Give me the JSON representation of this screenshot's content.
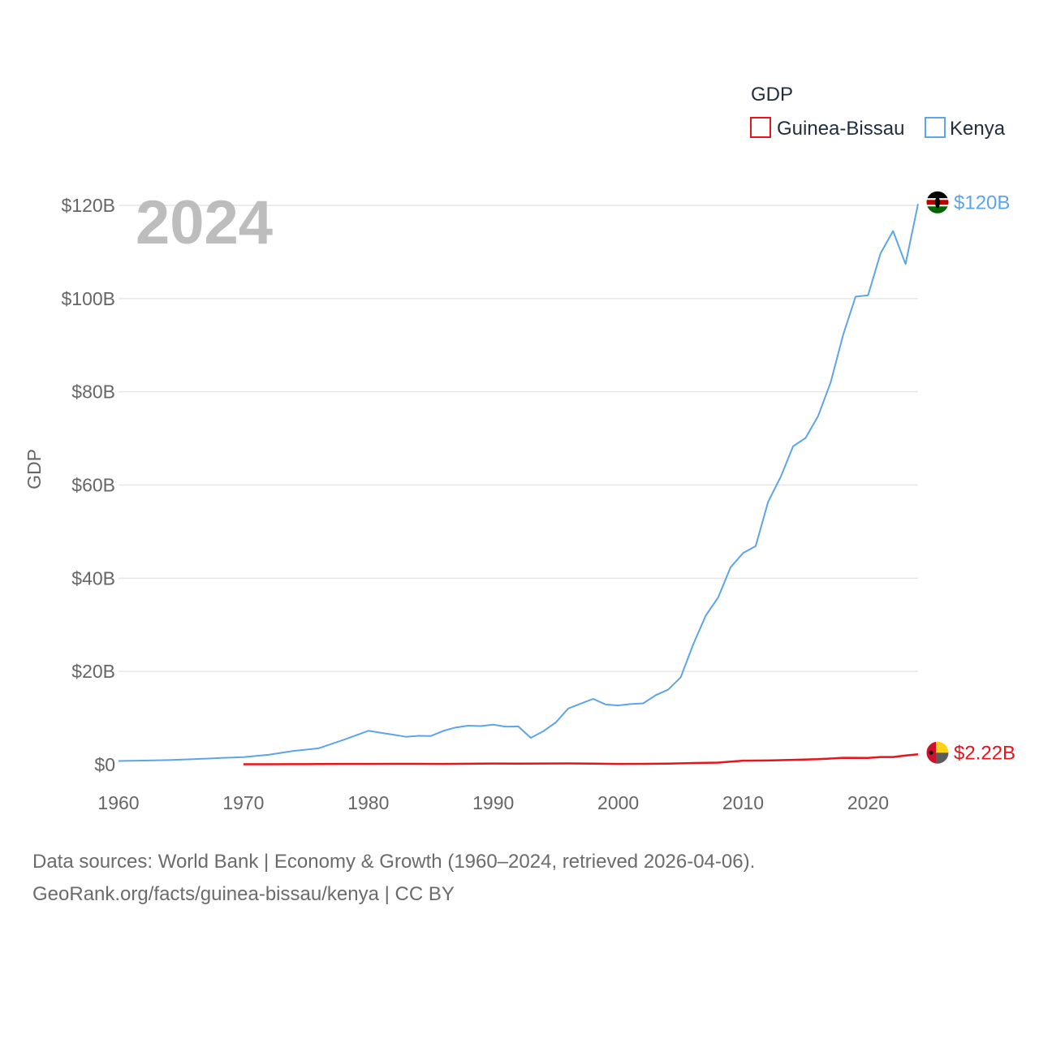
{
  "chart_data": {
    "type": "line",
    "year_label": "2024",
    "ylabel": "GDP",
    "legend_title": "GDP",
    "xlim": [
      1960,
      2024
    ],
    "ylim": [
      0,
      120
    ],
    "y_ticks": [
      {
        "value": 0,
        "label": "$0"
      },
      {
        "value": 20,
        "label": "$20B"
      },
      {
        "value": 40,
        "label": "$40B"
      },
      {
        "value": 60,
        "label": "$60B"
      },
      {
        "value": 80,
        "label": "$80B"
      },
      {
        "value": 100,
        "label": "$100B"
      },
      {
        "value": 120,
        "label": "$120B"
      }
    ],
    "x_ticks": [
      {
        "value": 1960,
        "label": "1960"
      },
      {
        "value": 1970,
        "label": "1970"
      },
      {
        "value": 1980,
        "label": "1980"
      },
      {
        "value": 1990,
        "label": "1990"
      },
      {
        "value": 2000,
        "label": "2000"
      },
      {
        "value": 2010,
        "label": "2010"
      },
      {
        "value": 2020,
        "label": "2020"
      }
    ],
    "series": [
      {
        "name": "Guinea-Bissau",
        "color": "#e8141c",
        "end_label": "$2.22B",
        "flag_colors": [
          "#ce1126",
          "#fcd116",
          "#5b5b5b",
          "#000000"
        ],
        "points": [
          [
            1970,
            0.08
          ],
          [
            1972,
            0.09
          ],
          [
            1974,
            0.11
          ],
          [
            1976,
            0.13
          ],
          [
            1978,
            0.15
          ],
          [
            1980,
            0.16
          ],
          [
            1982,
            0.18
          ],
          [
            1984,
            0.17
          ],
          [
            1986,
            0.16
          ],
          [
            1988,
            0.19
          ],
          [
            1990,
            0.24
          ],
          [
            1992,
            0.23
          ],
          [
            1994,
            0.24
          ],
          [
            1996,
            0.26
          ],
          [
            1998,
            0.21
          ],
          [
            2000,
            0.15
          ],
          [
            2002,
            0.17
          ],
          [
            2004,
            0.23
          ],
          [
            2006,
            0.35
          ],
          [
            2008,
            0.44
          ],
          [
            2010,
            0.85
          ],
          [
            2012,
            0.88
          ],
          [
            2014,
            1.02
          ],
          [
            2016,
            1.17
          ],
          [
            2018,
            1.46
          ],
          [
            2020,
            1.43
          ],
          [
            2021,
            1.64
          ],
          [
            2022,
            1.63
          ],
          [
            2023,
            1.97
          ],
          [
            2024,
            2.22
          ]
        ]
      },
      {
        "name": "Kenya",
        "color": "#5da5e8",
        "end_label": "$120B",
        "flag_colors": [
          "#000000",
          "#bb0000",
          "#006600",
          "#ffffff"
        ],
        "points": [
          [
            1960,
            0.79
          ],
          [
            1962,
            0.87
          ],
          [
            1964,
            0.97
          ],
          [
            1966,
            1.16
          ],
          [
            1968,
            1.41
          ],
          [
            1970,
            1.6
          ],
          [
            1972,
            2.1
          ],
          [
            1974,
            2.94
          ],
          [
            1976,
            3.5
          ],
          [
            1978,
            5.3
          ],
          [
            1980,
            7.27
          ],
          [
            1981,
            6.85
          ],
          [
            1982,
            6.43
          ],
          [
            1983,
            5.98
          ],
          [
            1984,
            6.19
          ],
          [
            1985,
            6.14
          ],
          [
            1986,
            7.24
          ],
          [
            1987,
            7.97
          ],
          [
            1988,
            8.36
          ],
          [
            1989,
            8.28
          ],
          [
            1990,
            8.57
          ],
          [
            1991,
            8.15
          ],
          [
            1992,
            8.21
          ],
          [
            1993,
            5.75
          ],
          [
            1994,
            7.15
          ],
          [
            1995,
            9.05
          ],
          [
            1996,
            12.05
          ],
          [
            1997,
            13.1
          ],
          [
            1998,
            14.1
          ],
          [
            1999,
            12.9
          ],
          [
            2000,
            12.7
          ],
          [
            2001,
            12.99
          ],
          [
            2002,
            13.15
          ],
          [
            2003,
            14.9
          ],
          [
            2004,
            16.1
          ],
          [
            2005,
            18.74
          ],
          [
            2006,
            25.8
          ],
          [
            2007,
            31.96
          ],
          [
            2008,
            35.9
          ],
          [
            2009,
            42.36
          ],
          [
            2010,
            45.4
          ],
          [
            2011,
            46.87
          ],
          [
            2012,
            56.4
          ],
          [
            2013,
            61.7
          ],
          [
            2014,
            68.3
          ],
          [
            2015,
            70.1
          ],
          [
            2016,
            74.8
          ],
          [
            2017,
            82.0
          ],
          [
            2018,
            92.2
          ],
          [
            2019,
            100.4
          ],
          [
            2020,
            100.7
          ],
          [
            2021,
            109.7
          ],
          [
            2022,
            114.5
          ],
          [
            2023,
            107.4
          ],
          [
            2024,
            120.3
          ]
        ]
      }
    ]
  },
  "footer": {
    "line1": "Data sources: World Bank | Economy & Growth (1960–2024, retrieved 2026-04-06).",
    "line2": "GeoRank.org/facts/guinea-bissau/kenya | CC BY"
  }
}
